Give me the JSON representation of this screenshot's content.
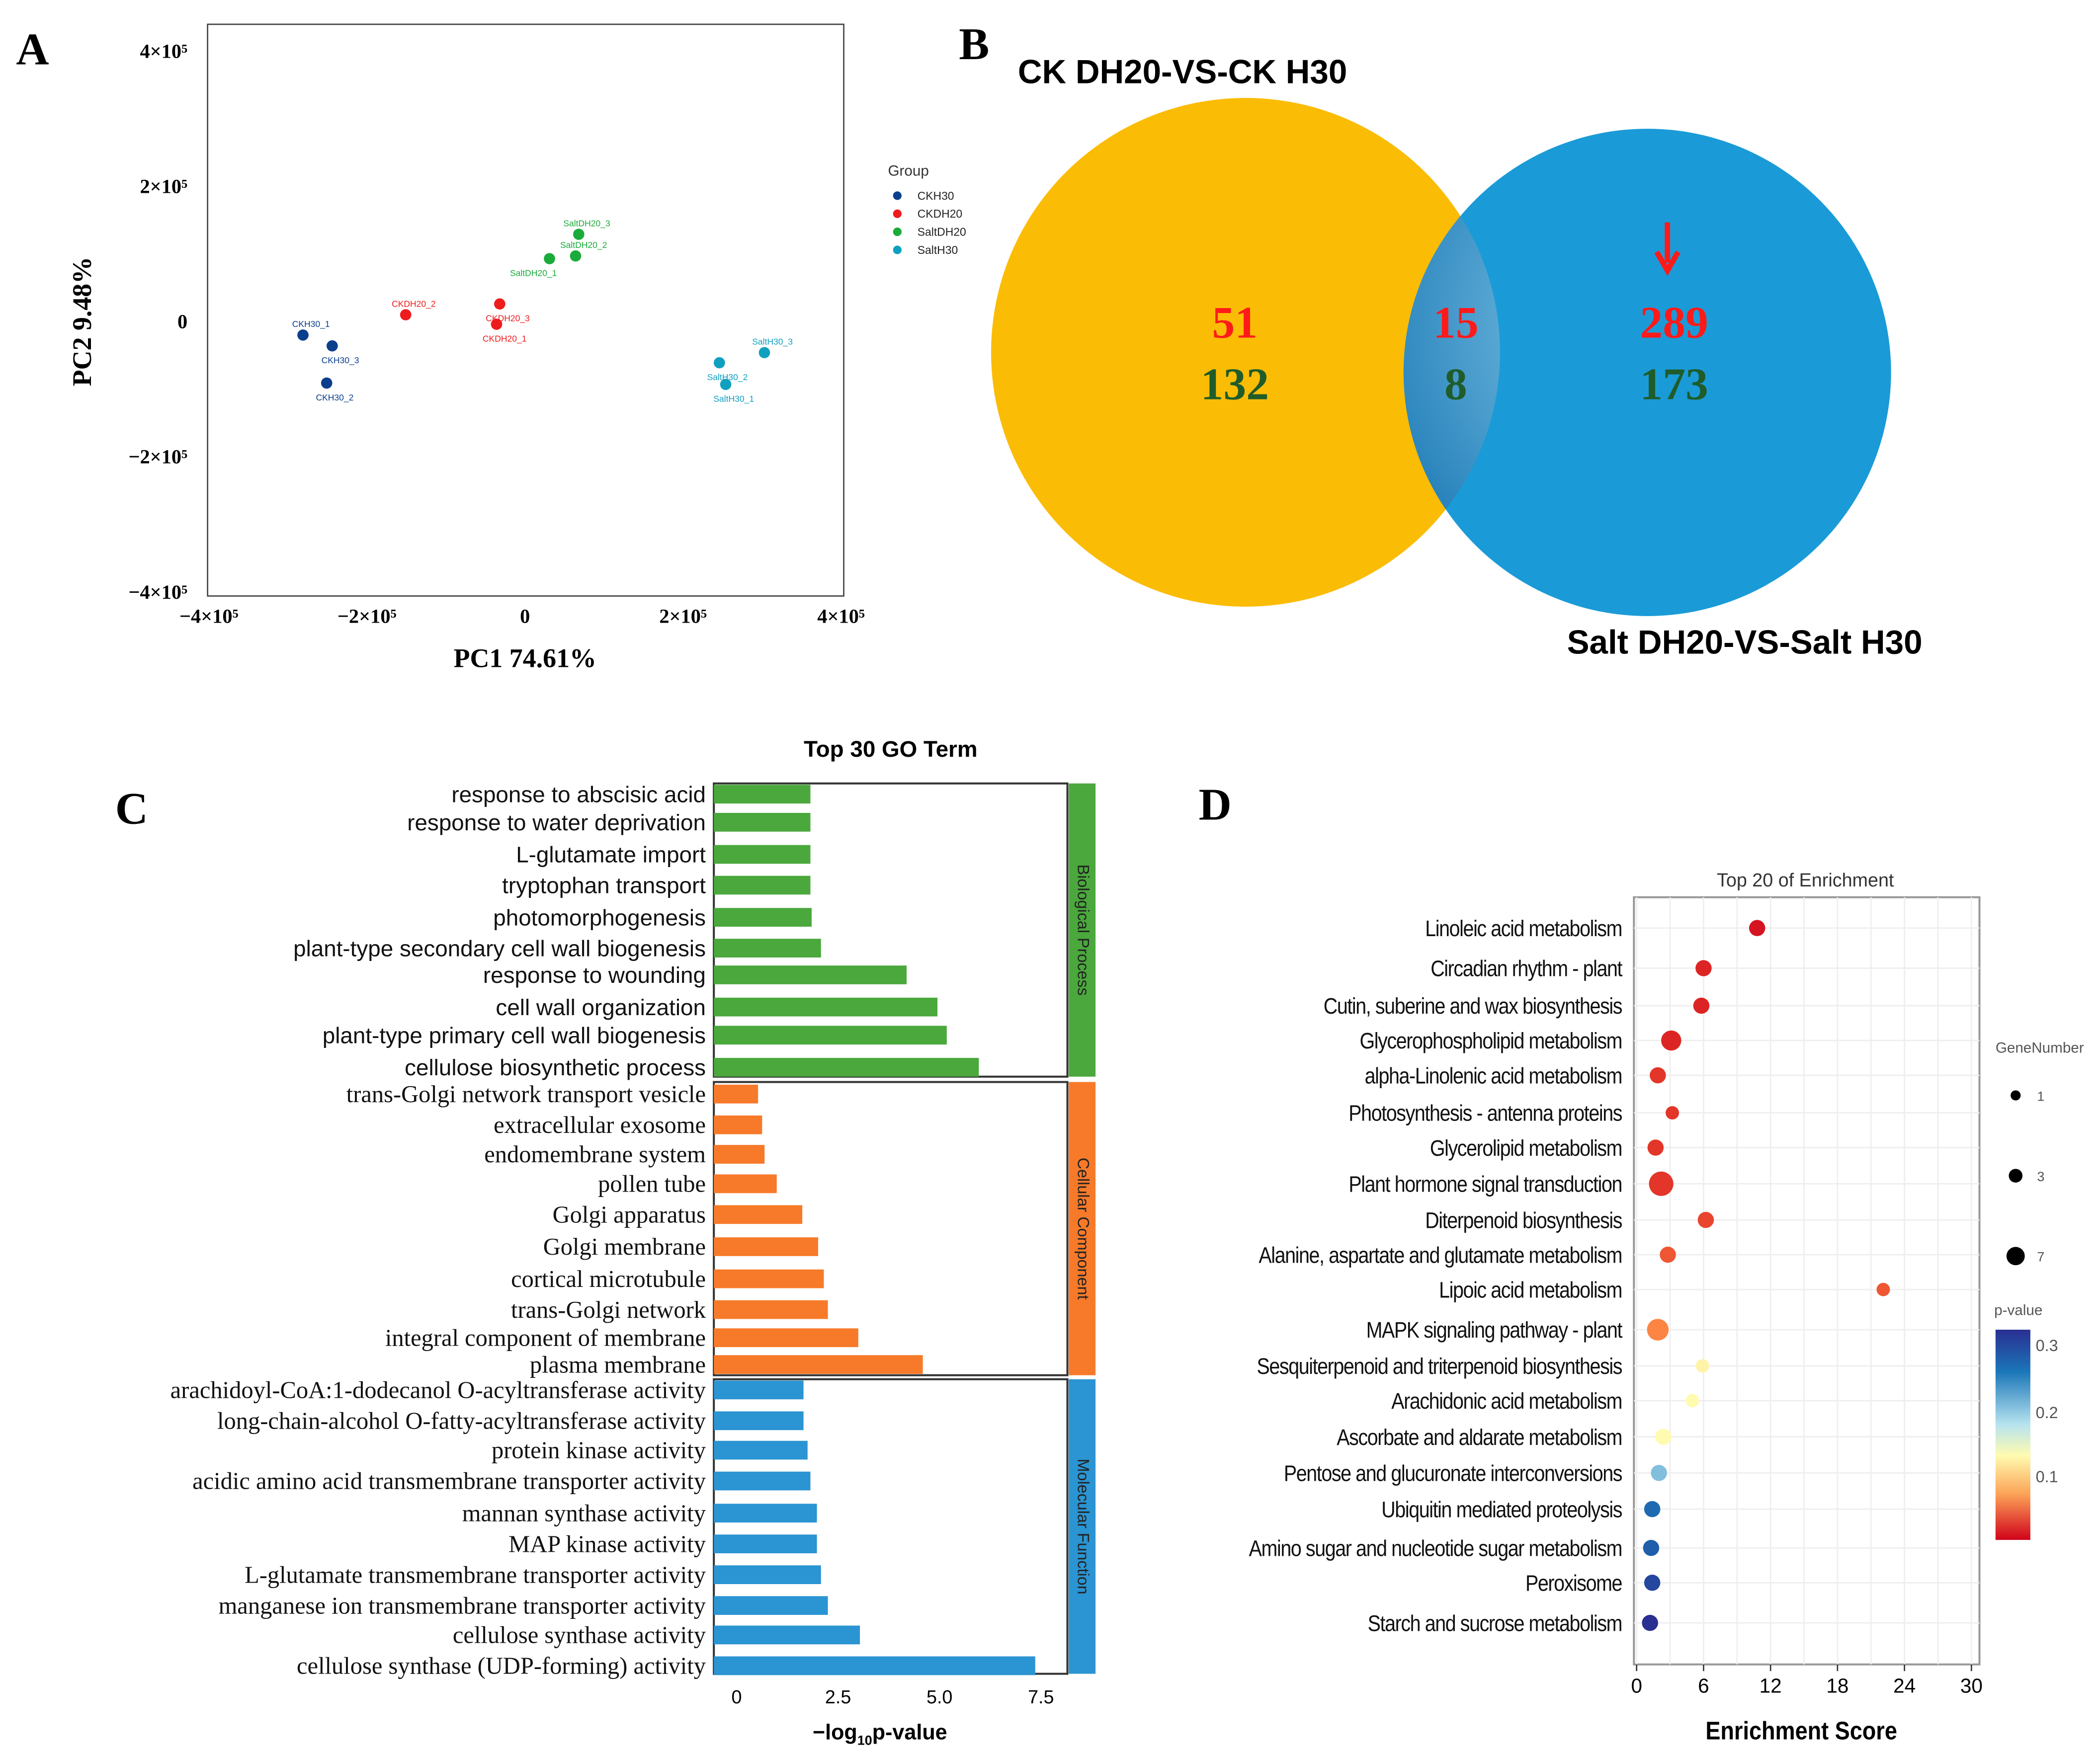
{
  "chart_data": [
    {
      "panel": "A",
      "type": "scatter",
      "xlabel": "PC1 74.61%",
      "ylabel": "PC2 9.48%",
      "xlim": [
        -400000,
        400000
      ],
      "ylim": [
        -400000,
        400000
      ],
      "xticks": [
        {
          "v": -400000,
          "label": "−4×10⁵"
        },
        {
          "v": -200000,
          "label": "−2×10⁵"
        },
        {
          "v": 0,
          "label": "0"
        },
        {
          "v": 200000,
          "label": "2×10⁵"
        },
        {
          "v": 400000,
          "label": "4×10⁵"
        }
      ],
      "yticks": [
        {
          "v": 400000,
          "label": "4×10⁵"
        },
        {
          "v": 200000,
          "label": "2×10⁵"
        },
        {
          "v": 0,
          "label": "0"
        },
        {
          "v": -200000,
          "label": "−2×10⁵"
        },
        {
          "v": -400000,
          "label": "−4×10⁵"
        }
      ],
      "legend_title": "Group",
      "legend_placement": "right",
      "groups": [
        {
          "name": "CKH30",
          "color": "#0a3f8c"
        },
        {
          "name": "CKDH20",
          "color": "#ee1c1c"
        },
        {
          "name": "SaltDH20",
          "color": "#1aab3a"
        },
        {
          "name": "SaltH30",
          "color": "#0fa0bf"
        }
      ],
      "points": [
        {
          "label": "CKH30_1",
          "group": 0,
          "x": -281000,
          "y": -20000
        },
        {
          "label": "CKH30_3",
          "group": 0,
          "x": -244000,
          "y": -36000
        },
        {
          "label": "CKH30_2",
          "group": 0,
          "x": -251000,
          "y": -91000
        },
        {
          "label": "CKDH20_2",
          "group": 1,
          "x": -151000,
          "y": 10000
        },
        {
          "label": "CKDH20_3",
          "group": 1,
          "x": -32000,
          "y": 26000
        },
        {
          "label": "CKDH20_1",
          "group": 1,
          "x": -36000,
          "y": -4000
        },
        {
          "label": "SaltDH20_3",
          "group": 2,
          "x": 68000,
          "y": 129000
        },
        {
          "label": "SaltDH20_2",
          "group": 2,
          "x": 64000,
          "y": 97000
        },
        {
          "label": "SaltDH20_1",
          "group": 2,
          "x": 31000,
          "y": 93000
        },
        {
          "label": "SaltH30_3",
          "group": 3,
          "x": 303000,
          "y": -46000
        },
        {
          "label": "SaltH30_2",
          "group": 3,
          "x": 246000,
          "y": -61000
        },
        {
          "label": "SaltH30_1",
          "group": 3,
          "x": 254000,
          "y": -93000
        }
      ]
    },
    {
      "panel": "B",
      "type": "venn",
      "sets": [
        {
          "name": "CK DH20-VS-CK H30",
          "color": "#fbbc05"
        },
        {
          "name": "Salt DH20-VS-Salt H30",
          "color": "#1a9bd7"
        }
      ],
      "regions": [
        {
          "region": "CK only",
          "up": "51",
          "down": "132"
        },
        {
          "region": "overlap",
          "up": "15",
          "down": "8"
        },
        {
          "region": "Salt only",
          "up": "289",
          "down": "173"
        }
      ],
      "up_color": "#ff1a1a",
      "down_color": "#1f5c2a"
    },
    {
      "panel": "C",
      "type": "bar",
      "orientation": "horizontal",
      "title": "Top 30 GO Term",
      "xlabel": "−log",
      "xlabel_sub": "10",
      "xlabel_suffix": "p-value",
      "xticks": [
        {
          "v": 0,
          "label": "0"
        },
        {
          "v": 2.5,
          "label": "2.5"
        },
        {
          "v": 5,
          "label": "5.0"
        },
        {
          "v": 7.5,
          "label": "7.5"
        }
      ],
      "categories": [
        {
          "name": "Biological Process",
          "color": "#4aa83c",
          "terms": [
            {
              "label": "response to abscisic acid",
              "value": 2.38
            },
            {
              "label": "response to water deprivation",
              "value": 2.38
            },
            {
              "label": "L-glutamate import",
              "value": 2.38
            },
            {
              "label": "tryptophan transport",
              "value": 2.38
            },
            {
              "label": "photomorphogenesis",
              "value": 2.41
            },
            {
              "label": "plant-type secondary cell wall biogenesis",
              "value": 2.64
            },
            {
              "label": "response to wounding",
              "value": 4.75
            },
            {
              "label": "cell wall organization",
              "value": 5.51
            },
            {
              "label": "plant-type primary cell wall biogenesis",
              "value": 5.74
            },
            {
              "label": "cellulose biosynthetic process",
              "value": 6.53
            }
          ]
        },
        {
          "name": "Cellular Component",
          "color": "#f77a2a",
          "terms": [
            {
              "label": "trans-Golgi network transport vesicle",
              "value": 1.09
            },
            {
              "label": "extracellular exosome",
              "value": 1.19
            },
            {
              "label": "endomembrane system",
              "value": 1.25
            },
            {
              "label": "pollen tube",
              "value": 1.55
            },
            {
              "label": "Golgi apparatus",
              "value": 2.18
            },
            {
              "label": "Golgi membrane",
              "value": 2.57
            },
            {
              "label": "cortical microtubule",
              "value": 2.71
            },
            {
              "label": "trans-Golgi network",
              "value": 2.81
            },
            {
              "label": "integral component of membrane",
              "value": 3.56
            },
            {
              "label": "plasma membrane",
              "value": 5.15
            }
          ]
        },
        {
          "name": "Molecular Function",
          "color": "#2b94d2",
          "terms": [
            {
              "label": "arachidoyl-CoA:1-dodecanol  O-acyltransferase  activity",
              "value": 2.21
            },
            {
              "label": "long-chain-alcohol  O-fatty-acyltransferase  activity",
              "value": 2.21
            },
            {
              "label": "protein kinase activity",
              "value": 2.31
            },
            {
              "label": "acidic amino acid transmembrane transporter activity",
              "value": 2.38
            },
            {
              "label": "mannan synthase activity",
              "value": 2.54
            },
            {
              "label": "MAP kinase activity",
              "value": 2.54
            },
            {
              "label": "L-glutamate transmembrane transporter activity",
              "value": 2.64
            },
            {
              "label": "manganese ion transmembrane transporter activity",
              "value": 2.81
            },
            {
              "label": "cellulose synthase activity",
              "value": 3.6
            },
            {
              "label": "cellulose synthase (UDP-forming) activity",
              "value": 7.92
            }
          ]
        }
      ]
    },
    {
      "panel": "D",
      "type": "scatter",
      "title": "Top 20 of  Enrichment",
      "xlabel": "Enrichment Score",
      "xlim": [
        0,
        30
      ],
      "xticks": [
        0,
        6,
        12,
        18,
        24,
        30
      ],
      "grid": true,
      "size_legend_title": "GeneNumber",
      "size_legend": [
        1,
        3,
        7
      ],
      "color_legend_title": "p-value",
      "color_legend_ticks": [
        "0.3",
        "0.2",
        "0.1"
      ],
      "color_range": [
        0,
        0.32
      ],
      "terms": [
        {
          "label": "Linoleic acid metabolism",
          "score": 10.8,
          "genes": 2,
          "p": 0.01
        },
        {
          "label": "Circadian rhythm - plant",
          "score": 6.0,
          "genes": 2,
          "p": 0.02
        },
        {
          "label": "Cutin, suberine and wax biosynthesis",
          "score": 5.8,
          "genes": 2,
          "p": 0.02
        },
        {
          "label": "Glycerophospholipid metabolism",
          "score": 3.1,
          "genes": 4,
          "p": 0.02
        },
        {
          "label": "alpha-Linolenic acid metabolism",
          "score": 1.9,
          "genes": 2,
          "p": 0.03
        },
        {
          "label": "Photosynthesis - antenna proteins",
          "score": 3.2,
          "genes": 1,
          "p": 0.03
        },
        {
          "label": "Glycerolipid metabolism",
          "score": 1.7,
          "genes": 2,
          "p": 0.03
        },
        {
          "label": "Plant hormone signal transduction",
          "score": 2.2,
          "genes": 7,
          "p": 0.03
        },
        {
          "label": "Diterpenoid biosynthesis",
          "score": 6.2,
          "genes": 2,
          "p": 0.04
        },
        {
          "label": "Alanine, aspartate and glutamate metabolism",
          "score": 2.8,
          "genes": 2,
          "p": 0.05
        },
        {
          "label": "Lipoic acid metabolism",
          "score": 22.1,
          "genes": 1,
          "p": 0.05
        },
        {
          "label": "MAPK signaling pathway - plant",
          "score": 1.9,
          "genes": 5,
          "p": 0.08
        },
        {
          "label": "Sesquiterpenoid and triterpenoid biosynthesis",
          "score": 5.9,
          "genes": 1,
          "p": 0.155
        },
        {
          "label": "Arachidonic acid metabolism",
          "score": 5.0,
          "genes": 1,
          "p": 0.16
        },
        {
          "label": "Ascorbate and aldarate metabolism",
          "score": 2.4,
          "genes": 2,
          "p": 0.16
        },
        {
          "label": "Pentose and glucuronate interconversions",
          "score": 2.0,
          "genes": 2,
          "p": 0.22
        },
        {
          "label": "Ubiquitin mediated proteolysis",
          "score": 1.4,
          "genes": 2,
          "p": 0.27
        },
        {
          "label": "Amino sugar and nucleotide sugar metabolism",
          "score": 1.3,
          "genes": 2,
          "p": 0.28
        },
        {
          "label": "Peroxisome",
          "score": 1.4,
          "genes": 2,
          "p": 0.3
        },
        {
          "label": "Starch and sucrose metabolism",
          "score": 1.2,
          "genes": 2,
          "p": 0.32
        }
      ]
    }
  ],
  "panel_labels": {
    "a": "A",
    "b": "B",
    "c": "C",
    "d": "D"
  }
}
